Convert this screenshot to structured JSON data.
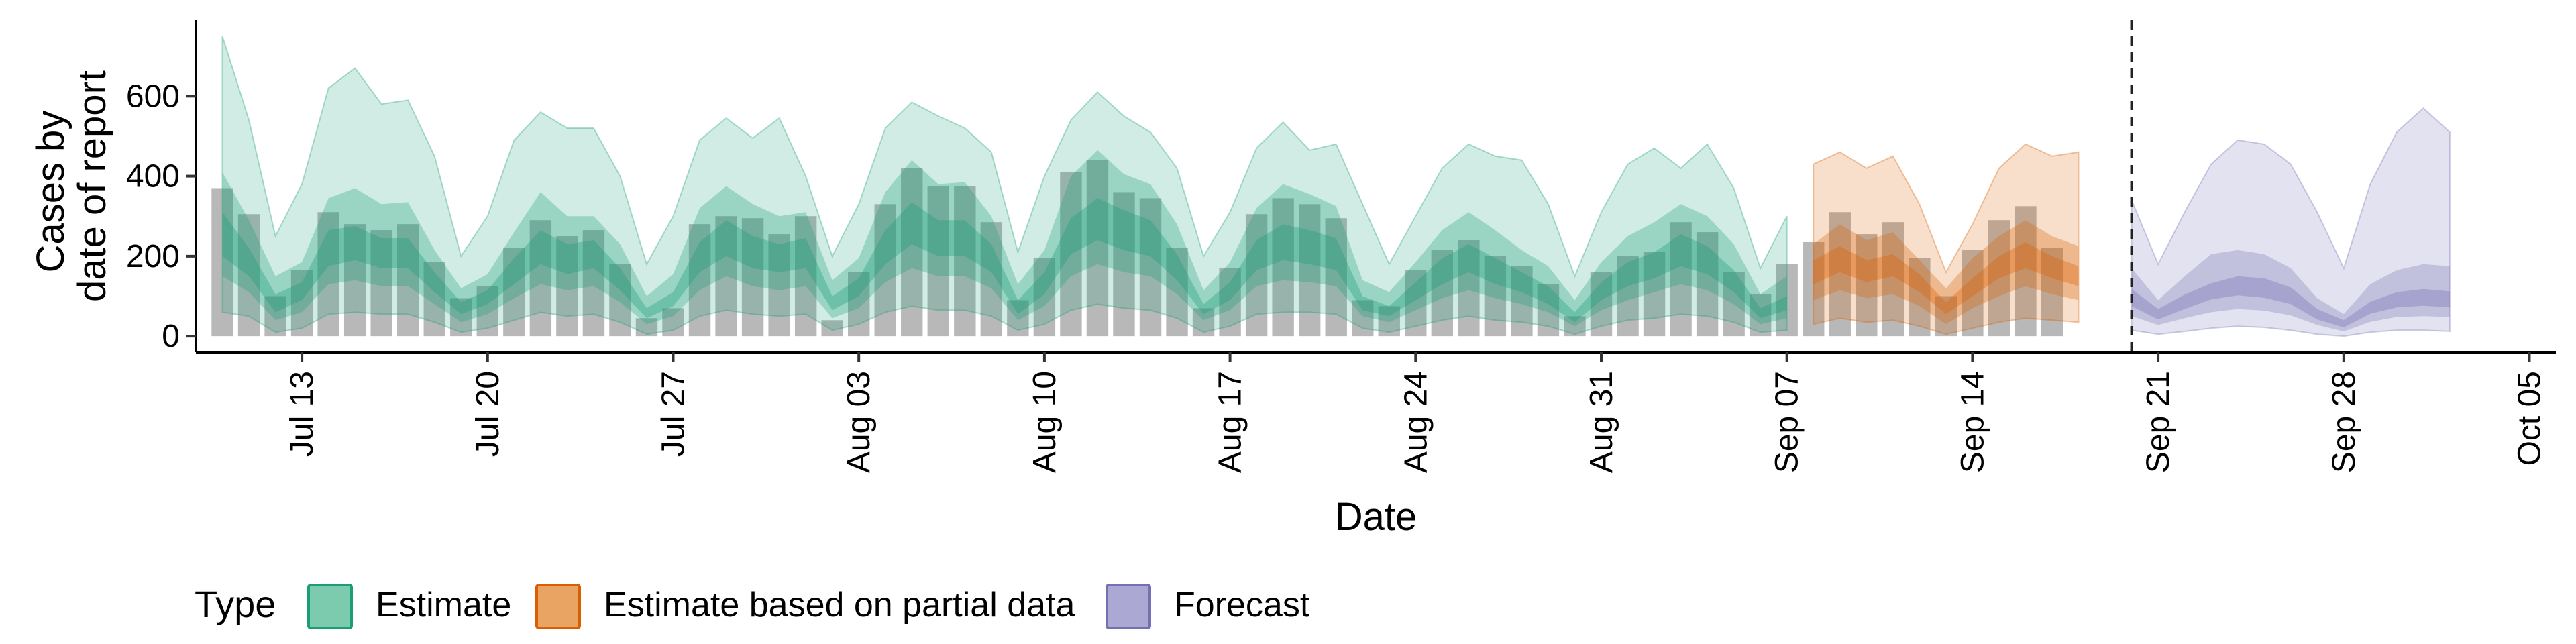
{
  "chart_data": {
    "type": "area",
    "xlabel": "Date",
    "ylabel_lines": [
      "Cases by",
      "date of report"
    ],
    "x_start": "2020-07-10",
    "x_range": [
      "2020-07-09",
      "2020-10-06"
    ],
    "ylim": [
      -40,
      790
    ],
    "y_ticks": [
      0,
      200,
      400,
      600
    ],
    "x_ticks": [
      {
        "date": "2020-07-13",
        "label": "Jul 13"
      },
      {
        "date": "2020-07-20",
        "label": "Jul 20"
      },
      {
        "date": "2020-07-27",
        "label": "Jul 27"
      },
      {
        "date": "2020-08-03",
        "label": "Aug 03"
      },
      {
        "date": "2020-08-10",
        "label": "Aug 10"
      },
      {
        "date": "2020-08-17",
        "label": "Aug 17"
      },
      {
        "date": "2020-08-24",
        "label": "Aug 24"
      },
      {
        "date": "2020-08-31",
        "label": "Aug 31"
      },
      {
        "date": "2020-09-07",
        "label": "Sep 07"
      },
      {
        "date": "2020-09-14",
        "label": "Sep 14"
      },
      {
        "date": "2020-09-21",
        "label": "Sep 21"
      },
      {
        "date": "2020-09-28",
        "label": "Sep 28"
      },
      {
        "date": "2020-10-05",
        "label": "Oct 05"
      }
    ],
    "vline_date": "2020-09-20",
    "grid": false,
    "legend": {
      "title": "Type",
      "placement": "bottom",
      "entries": [
        {
          "label": "Estimate",
          "fill": "#7ccbae",
          "stroke": "#1b9e77"
        },
        {
          "label": "Estimate based on partial data",
          "fill": "#e9a362",
          "stroke": "#d95f02"
        },
        {
          "label": "Forecast",
          "fill": "#aba8d3",
          "stroke": "#7570b3"
        }
      ]
    },
    "colors": {
      "Estimate": "#1b9e77",
      "Estimate based on partial data": "#d95f02",
      "Forecast": "#7570b3",
      "bars": "#a0a0a0"
    },
    "reported_cases": [
      370,
      305,
      100,
      165,
      310,
      280,
      265,
      280,
      185,
      95,
      125,
      220,
      290,
      250,
      265,
      180,
      45,
      70,
      280,
      300,
      295,
      255,
      300,
      40,
      160,
      330,
      420,
      375,
      375,
      285,
      90,
      195,
      410,
      440,
      360,
      345,
      220,
      70,
      170,
      305,
      345,
      330,
      295,
      90,
      75,
      165,
      215,
      240,
      200,
      175,
      130,
      50,
      160,
      200,
      210,
      285,
      260,
      160,
      105,
      180,
      235,
      310,
      255,
      285,
      195,
      100,
      215,
      290,
      325,
      220
    ],
    "series": [
      {
        "name": "Estimate",
        "start_date": "2020-07-10",
        "median": [
          250,
          180,
          80,
          110,
          220,
          230,
          200,
          200,
          130,
          70,
          95,
          160,
          220,
          190,
          200,
          140,
          55,
          90,
          190,
          240,
          205,
          190,
          205,
          80,
          120,
          220,
          280,
          240,
          240,
          190,
          70,
          130,
          245,
          290,
          260,
          240,
          170,
          65,
          110,
          200,
          230,
          220,
          200,
          80,
          60,
          110,
          160,
          190,
          160,
          130,
          100,
          45,
          110,
          150,
          175,
          210,
          185,
          135,
          55,
          80
        ],
        "lo20": [
          200,
          150,
          60,
          90,
          175,
          190,
          170,
          170,
          110,
          55,
          80,
          130,
          180,
          155,
          170,
          115,
          45,
          75,
          160,
          200,
          170,
          160,
          170,
          65,
          100,
          180,
          230,
          200,
          200,
          160,
          55,
          105,
          205,
          240,
          215,
          200,
          140,
          55,
          90,
          165,
          190,
          180,
          165,
          65,
          50,
          90,
          130,
          160,
          130,
          110,
          80,
          35,
          90,
          125,
          145,
          175,
          155,
          110,
          45,
          65
        ],
        "hi20": [
          310,
          220,
          105,
          135,
          265,
          275,
          245,
          245,
          160,
          85,
          115,
          195,
          265,
          230,
          240,
          170,
          70,
          110,
          235,
          290,
          250,
          230,
          245,
          100,
          145,
          265,
          335,
          290,
          290,
          230,
          90,
          160,
          295,
          345,
          315,
          290,
          205,
          80,
          135,
          240,
          280,
          265,
          245,
          100,
          75,
          135,
          195,
          230,
          195,
          160,
          125,
          60,
          135,
          185,
          210,
          255,
          225,
          165,
          70,
          100
        ],
        "lo50": [
          150,
          110,
          40,
          60,
          130,
          140,
          125,
          125,
          80,
          35,
          55,
          95,
          130,
          115,
          125,
          85,
          30,
          50,
          115,
          150,
          125,
          115,
          125,
          45,
          70,
          135,
          170,
          150,
          150,
          120,
          40,
          75,
          150,
          180,
          160,
          150,
          105,
          40,
          65,
          125,
          140,
          135,
          125,
          50,
          35,
          65,
          95,
          115,
          95,
          80,
          60,
          25,
          65,
          90,
          110,
          130,
          115,
          80,
          30,
          45
        ],
        "hi50": [
          410,
          290,
          150,
          185,
          345,
          370,
          330,
          335,
          215,
          120,
          155,
          260,
          360,
          300,
          300,
          230,
          100,
          155,
          320,
          375,
          330,
          300,
          310,
          140,
          195,
          360,
          440,
          380,
          385,
          300,
          130,
          215,
          400,
          465,
          405,
          380,
          280,
          115,
          185,
          320,
          380,
          355,
          325,
          140,
          110,
          185,
          265,
          310,
          265,
          215,
          175,
          90,
          185,
          250,
          285,
          330,
          300,
          230,
          105,
          150
        ],
        "lo90": [
          60,
          50,
          10,
          20,
          55,
          60,
          55,
          55,
          35,
          10,
          20,
          40,
          60,
          50,
          55,
          35,
          5,
          15,
          50,
          65,
          55,
          50,
          55,
          15,
          30,
          60,
          75,
          65,
          65,
          50,
          15,
          30,
          65,
          80,
          70,
          65,
          45,
          10,
          25,
          55,
          60,
          60,
          55,
          20,
          10,
          25,
          40,
          50,
          40,
          35,
          25,
          5,
          25,
          40,
          45,
          55,
          50,
          35,
          10,
          15
        ],
        "hi90": [
          750,
          540,
          250,
          380,
          620,
          670,
          580,
          590,
          450,
          200,
          300,
          490,
          560,
          520,
          520,
          400,
          180,
          300,
          490,
          545,
          495,
          545,
          400,
          200,
          330,
          520,
          585,
          550,
          520,
          460,
          210,
          400,
          540,
          610,
          550,
          510,
          420,
          200,
          310,
          470,
          535,
          465,
          480,
          330,
          180,
          300,
          420,
          480,
          450,
          440,
          330,
          150,
          310,
          430,
          470,
          420,
          480,
          370,
          170,
          300
        ]
      },
      {
        "name": "Estimate based on partial data",
        "start_date": "2020-09-08",
        "median": [
          160,
          190,
          160,
          175,
          130,
          70,
          120,
          170,
          200,
          170,
          150
        ],
        "lo20": [
          130,
          160,
          135,
          150,
          110,
          55,
          100,
          145,
          170,
          145,
          125
        ],
        "hi20": [
          190,
          225,
          190,
          205,
          155,
          85,
          145,
          200,
          235,
          200,
          175
        ],
        "lo50": [
          90,
          115,
          95,
          105,
          75,
          30,
          70,
          100,
          125,
          105,
          90
        ],
        "hi50": [
          230,
          280,
          240,
          260,
          190,
          120,
          195,
          250,
          290,
          250,
          225
        ],
        "lo90": [
          30,
          45,
          35,
          40,
          25,
          5,
          20,
          35,
          45,
          40,
          35
        ],
        "hi90": [
          430,
          460,
          420,
          450,
          330,
          160,
          280,
          420,
          480,
          450,
          460
        ]
      },
      {
        "name": "Forecast",
        "start_date": "2020-09-20",
        "median": [
          95,
          55,
          85,
          110,
          125,
          120,
          100,
          55,
          30,
          70,
          90,
          95,
          90
        ],
        "lo20": [
          75,
          42,
          68,
          92,
          102,
          96,
          80,
          42,
          22,
          56,
          72,
          76,
          72
        ],
        "hi20": [
          118,
          68,
          104,
          132,
          150,
          145,
          122,
          68,
          40,
          86,
          110,
          118,
          112
        ],
        "lo50": [
          50,
          28,
          45,
          60,
          68,
          64,
          52,
          28,
          12,
          36,
          48,
          50,
          48
        ],
        "hi50": [
          170,
          90,
          150,
          205,
          215,
          205,
          170,
          95,
          55,
          130,
          165,
          180,
          175
        ],
        "lo90": [
          15,
          5,
          12,
          20,
          25,
          22,
          15,
          5,
          0,
          10,
          15,
          15,
          12
        ],
        "hi90": [
          340,
          180,
          310,
          430,
          490,
          480,
          430,
          310,
          170,
          380,
          510,
          570,
          510
        ]
      }
    ]
  }
}
